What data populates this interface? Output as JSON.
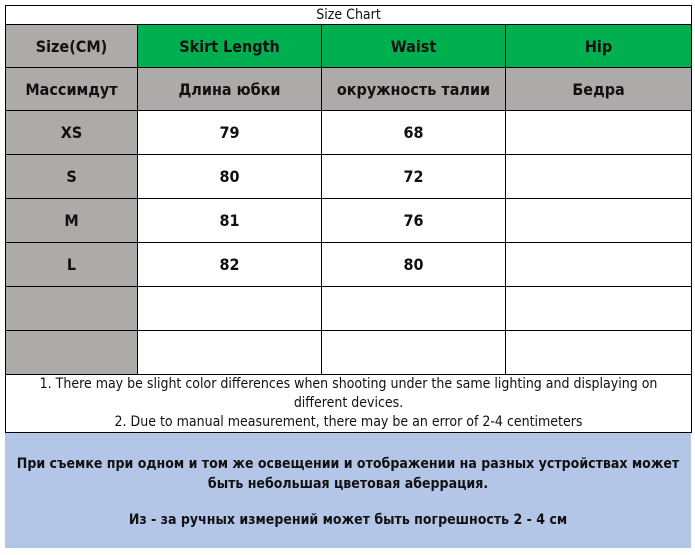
{
  "title": "Size Chart",
  "colors": {
    "header_gray": "#aeaaaa",
    "header_green": "#00b050",
    "note_blue": "#b4c6e7"
  },
  "headers_en": [
    "Size(CM)",
    "Skirt Length",
    "Waist",
    "Hip"
  ],
  "headers_ru": [
    "Массимдут",
    "Длина юбки",
    "окружность талии",
    "Бедра"
  ],
  "rows": [
    [
      "XS",
      "79",
      "68",
      ""
    ],
    [
      "S",
      "80",
      "72",
      ""
    ],
    [
      "M",
      "81",
      "76",
      ""
    ],
    [
      "L",
      "82",
      "80",
      ""
    ],
    [
      "",
      "",
      "",
      ""
    ],
    [
      "",
      "",
      "",
      ""
    ]
  ],
  "notes_en": [
    "1. There may be slight color differences when shooting under the same lighting and displaying on different devices.",
    "2. Due to manual measurement, there may be an error of 2-4 centimeters"
  ],
  "notes_ru": [
    "При съемке при одном и том же освещении и отображении на разных устройствах может быть небольшая цветовая аберрация.",
    "Из - за ручных измерений может быть погрешность 2 - 4 см"
  ]
}
